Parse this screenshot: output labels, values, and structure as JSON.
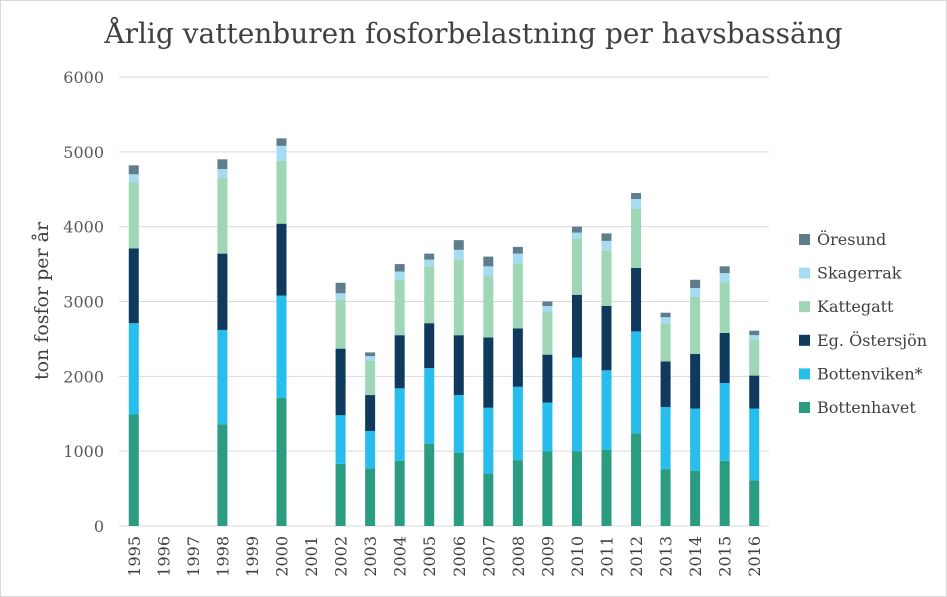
{
  "chart_data": {
    "type": "bar",
    "stacked": true,
    "title": "Årlig vattenburen fosforbelastning per havsbassäng",
    "xlabel": "",
    "ylabel": "ton fosfor per år",
    "ylim": [
      0,
      6000
    ],
    "yticks": [
      0,
      1000,
      2000,
      3000,
      4000,
      5000,
      6000
    ],
    "grid": true,
    "legend_position": "right",
    "categories": [
      "1995",
      "1996",
      "1997",
      "1998",
      "1999",
      "2000",
      "2001",
      "2002",
      "2003",
      "2004",
      "2005",
      "2006",
      "2007",
      "2008",
      "2009",
      "2010",
      "2011",
      "2012",
      "2013",
      "2014",
      "2015",
      "2016"
    ],
    "series": [
      {
        "name": "Bottenhavet",
        "color": "#2a9d80",
        "values": [
          1490,
          null,
          null,
          1360,
          null,
          1710,
          null,
          830,
          770,
          870,
          1100,
          980,
          700,
          880,
          1000,
          1000,
          1020,
          1240,
          760,
          740,
          870,
          610
        ]
      },
      {
        "name": "Bottenviken*",
        "color": "#27bdec",
        "values": [
          1220,
          null,
          null,
          1260,
          null,
          1370,
          null,
          650,
          500,
          970,
          1010,
          770,
          880,
          980,
          650,
          1250,
          1060,
          1360,
          830,
          830,
          1040,
          960
        ]
      },
      {
        "name": "Eg. Östersjön",
        "color": "#0f3a5e",
        "values": [
          1000,
          null,
          null,
          1020,
          null,
          960,
          null,
          890,
          480,
          710,
          600,
          800,
          940,
          780,
          640,
          840,
          860,
          850,
          610,
          730,
          670,
          440
        ]
      },
      {
        "name": "Kattegatt",
        "color": "#9fd6b6",
        "values": [
          880,
          null,
          null,
          1010,
          null,
          840,
          null,
          660,
          460,
          740,
          760,
          1010,
          820,
          870,
          570,
          750,
          740,
          790,
          510,
          760,
          680,
          480
        ]
      },
      {
        "name": "Skagerrak",
        "color": "#a6dcf2",
        "values": [
          110,
          null,
          null,
          120,
          null,
          200,
          null,
          80,
          60,
          110,
          90,
          130,
          130,
          130,
          80,
          80,
          130,
          130,
          80,
          120,
          120,
          60
        ]
      },
      {
        "name": "Öresund",
        "color": "#607d8b",
        "values": [
          120,
          null,
          null,
          130,
          null,
          100,
          null,
          140,
          50,
          100,
          80,
          130,
          130,
          90,
          60,
          80,
          100,
          80,
          60,
          110,
          90,
          60
        ]
      }
    ]
  }
}
